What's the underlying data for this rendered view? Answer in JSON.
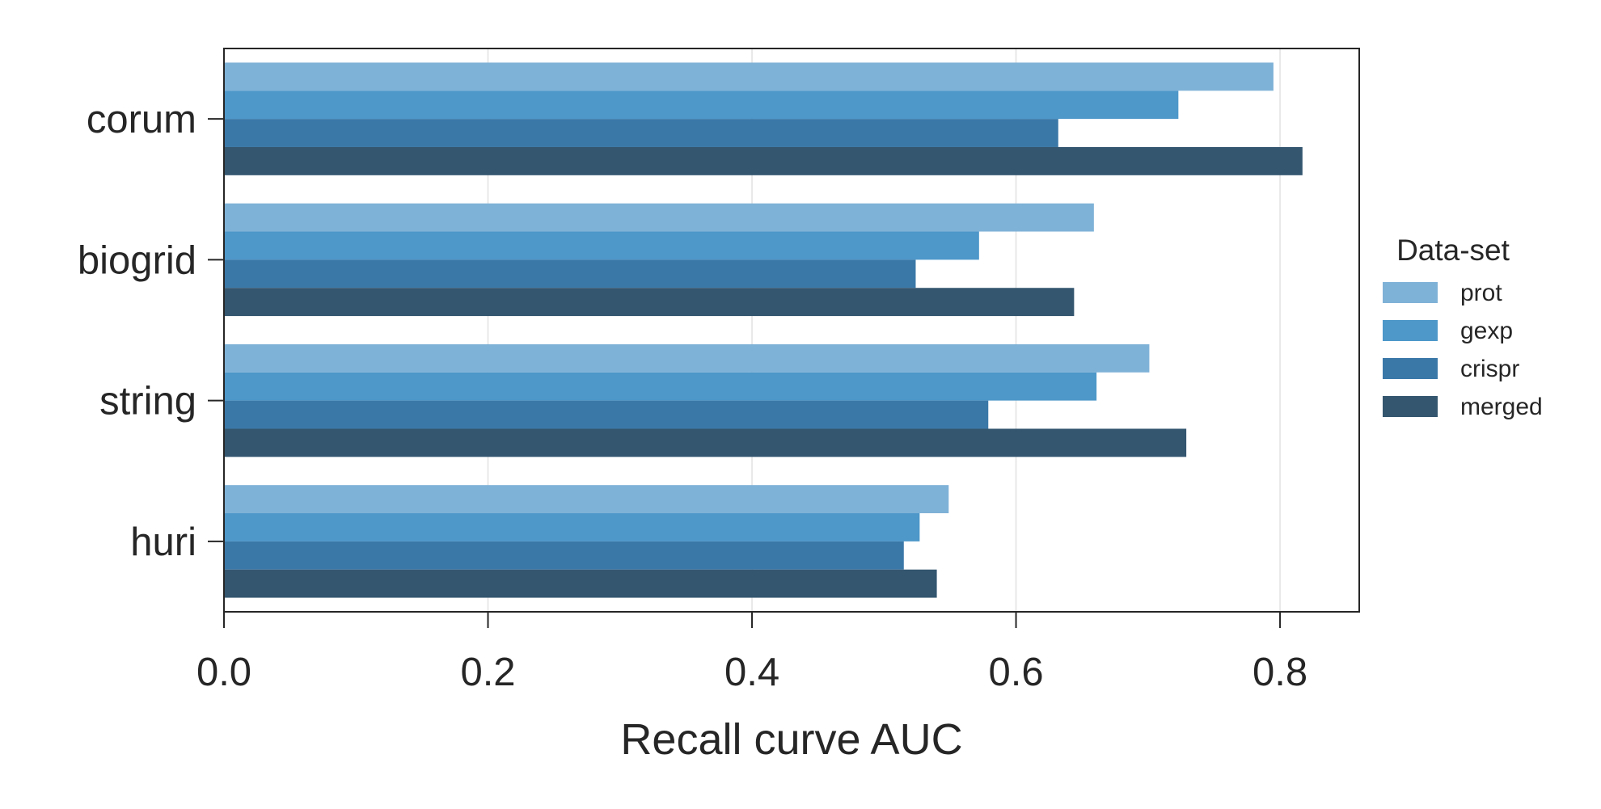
{
  "chart_data": {
    "type": "bar",
    "orientation": "horizontal",
    "categories": [
      "corum",
      "biogrid",
      "string",
      "huri"
    ],
    "series": [
      {
        "name": "prot",
        "values": [
          0.795,
          0.659,
          0.701,
          0.549
        ]
      },
      {
        "name": "gexp",
        "values": [
          0.723,
          0.572,
          0.661,
          0.527
        ]
      },
      {
        "name": "crispr",
        "values": [
          0.632,
          0.524,
          0.579,
          0.515
        ]
      },
      {
        "name": "merged",
        "values": [
          0.817,
          0.644,
          0.729,
          0.54
        ]
      }
    ],
    "title": "",
    "xlabel": "Recall curve AUC",
    "ylabel": "",
    "xlim": [
      0.0,
      0.86
    ],
    "xticks": [
      "0.0",
      "0.2",
      "0.4",
      "0.6",
      "0.8"
    ],
    "xtick_values": [
      0.0,
      0.2,
      0.4,
      0.6,
      0.8
    ],
    "grid": "vertical",
    "legend": {
      "title": "Data-set",
      "position": "right"
    },
    "colors": [
      "#7fb2d7",
      "#4d97c9",
      "#3a78a8",
      "#34566f"
    ]
  }
}
